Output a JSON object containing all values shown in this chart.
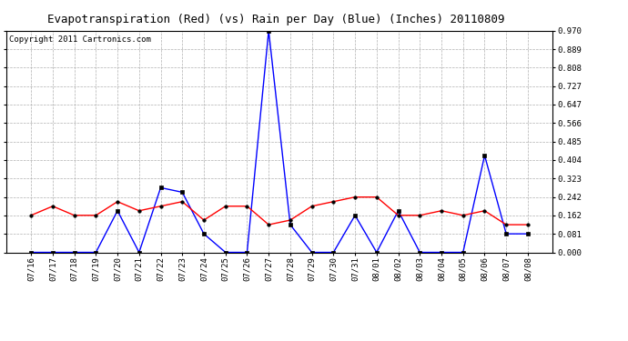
{
  "title": "Evapotranspiration (Red) (vs) Rain per Day (Blue) (Inches) 20110809",
  "copyright": "Copyright 2011 Cartronics.com",
  "dates": [
    "07/16",
    "07/17",
    "07/18",
    "07/19",
    "07/20",
    "07/21",
    "07/22",
    "07/23",
    "07/24",
    "07/25",
    "07/26",
    "07/27",
    "07/28",
    "07/29",
    "07/30",
    "07/31",
    "08/01",
    "08/02",
    "08/03",
    "08/04",
    "08/05",
    "08/06",
    "08/07",
    "08/08"
  ],
  "red_et": [
    0.162,
    0.202,
    0.162,
    0.162,
    0.222,
    0.182,
    0.202,
    0.222,
    0.141,
    0.202,
    0.202,
    0.121,
    0.141,
    0.202,
    0.222,
    0.242,
    0.242,
    0.162,
    0.162,
    0.182,
    0.162,
    0.182,
    0.121,
    0.121
  ],
  "blue_rain": [
    0.0,
    0.0,
    0.0,
    0.0,
    0.182,
    0.0,
    0.283,
    0.263,
    0.081,
    0.0,
    0.0,
    0.97,
    0.121,
    0.0,
    0.0,
    0.162,
    0.0,
    0.182,
    0.0,
    0.0,
    0.0,
    0.424,
    0.081,
    0.081
  ],
  "ylim": [
    0.0,
    0.97
  ],
  "yticks": [
    0.0,
    0.081,
    0.162,
    0.242,
    0.323,
    0.404,
    0.485,
    0.566,
    0.647,
    0.727,
    0.808,
    0.889,
    0.97
  ],
  "bg_color": "#ffffff",
  "plot_bg": "#ffffff",
  "grid_color": "#b0b0b0",
  "red_color": "#ff0000",
  "blue_color": "#0000ff",
  "title_fontsize": 9,
  "copyright_fontsize": 6.5,
  "tick_fontsize": 6.5
}
